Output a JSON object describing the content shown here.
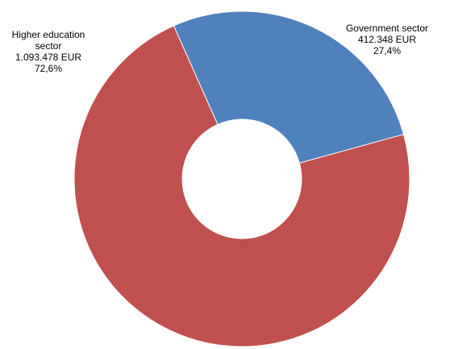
{
  "chart_data": {
    "type": "donut",
    "categories": [
      "Government sector",
      "Higher education sector"
    ],
    "values": [
      412348,
      1093478
    ],
    "value_labels": [
      "412.348 EUR",
      "1.093.478 EUR"
    ],
    "shares": [
      27.4,
      72.6
    ],
    "share_labels": [
      "27,4%",
      "72,6%"
    ],
    "colors": [
      "#4f81bd",
      "#c0504d"
    ]
  }
}
